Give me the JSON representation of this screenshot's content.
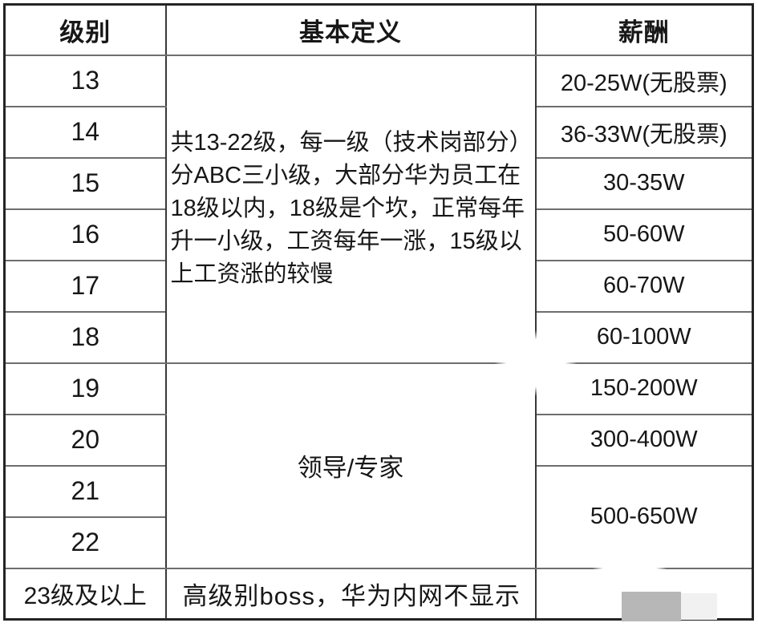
{
  "table": {
    "headers": {
      "level": "级别",
      "definition": "基本定义",
      "salary": "薪酬"
    },
    "merged": {
      "definition_13_18": "共13-22级，每一级（技术岗部分）分ABC三小级，大部分华为员工在18级以内，18级是个坎，正常每年升一小级，工资每年一涨，15级以上工资涨的较慢",
      "definition_19_22": "领导/专家",
      "salary_21_22": "500-650W"
    },
    "rows": [
      {
        "level": "13",
        "salary": "20-25W(无股票)"
      },
      {
        "level": "14",
        "salary": "36-33W(无股票)"
      },
      {
        "level": "15",
        "salary": "30-35W"
      },
      {
        "level": "16",
        "salary": "50-60W"
      },
      {
        "level": "17",
        "salary": "60-70W"
      },
      {
        "level": "18",
        "salary": "60-100W"
      },
      {
        "level": "19",
        "salary": "150-200W"
      },
      {
        "level": "20",
        "salary": "300-400W"
      },
      {
        "level": "21"
      },
      {
        "level": "22"
      },
      {
        "level": "23级及以上",
        "definition": "高级别boss，华为内网不显示",
        "salary": ""
      }
    ],
    "colors": {
      "outer_border": "#242424",
      "vertical_border": "#383838",
      "horizontal_border": "#6e6e6e",
      "text": "#171717",
      "watermark_gray": "#b7b7b7"
    }
  }
}
